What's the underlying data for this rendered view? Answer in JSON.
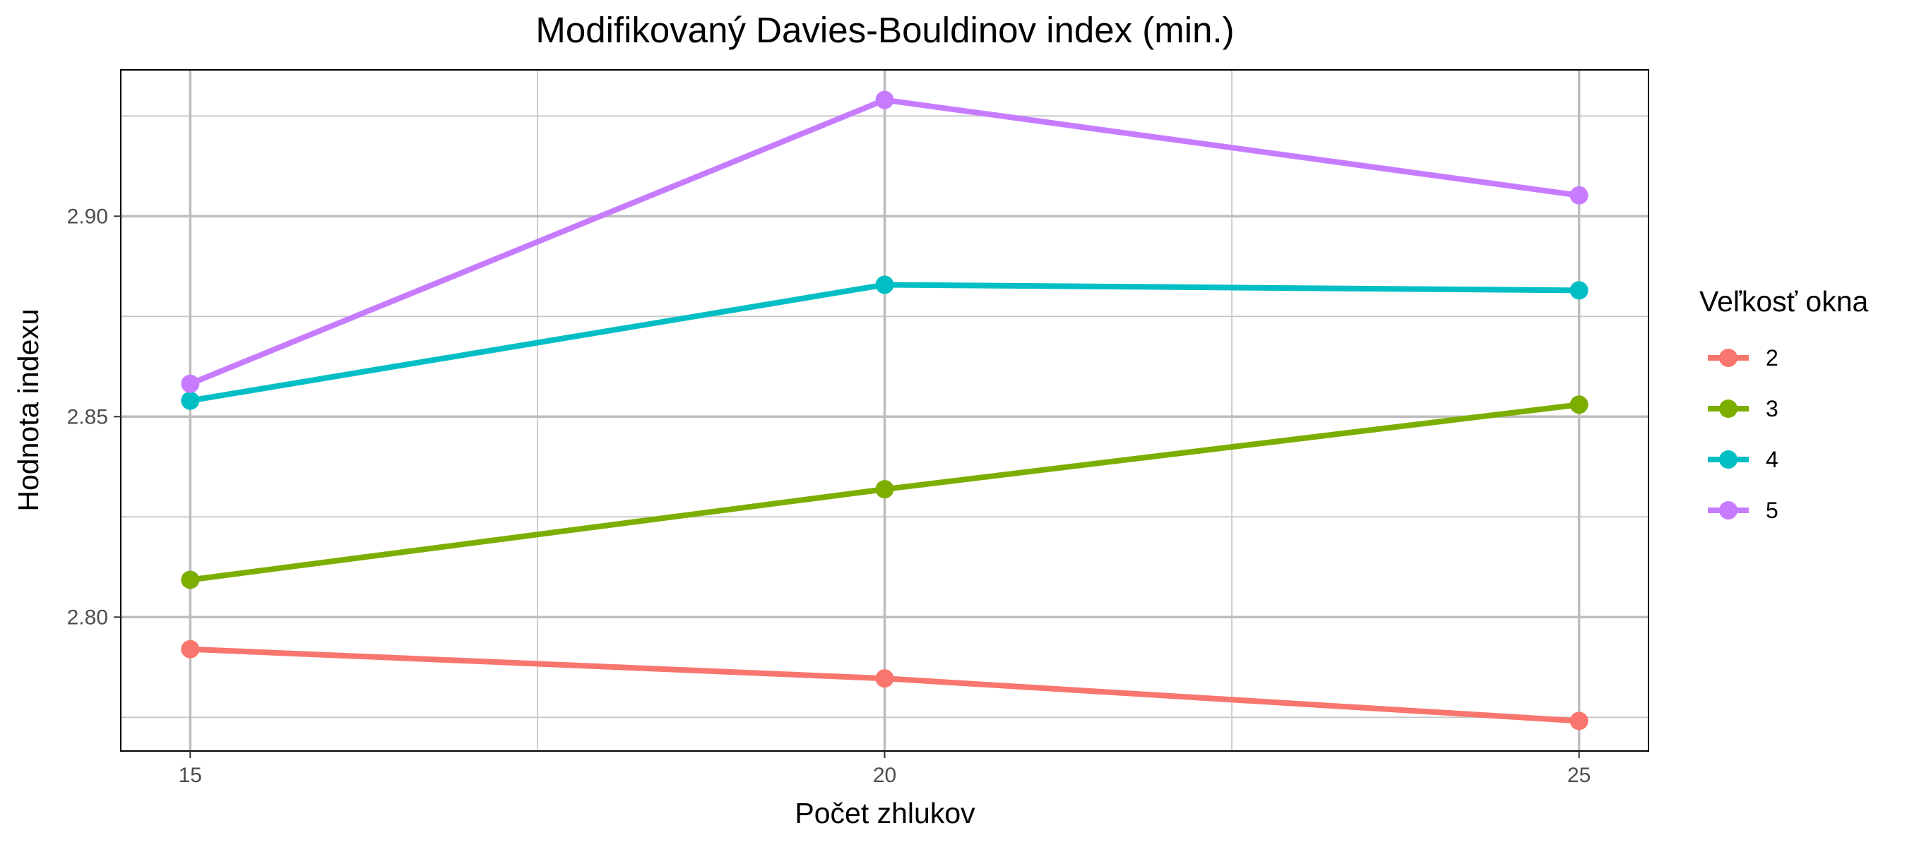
{
  "chart_data": {
    "type": "line",
    "title": "Modifikovaný Davies-Bouldinov index (min.)",
    "xlabel": "Počet zhlukov",
    "ylabel": "Hodnota indexu",
    "x": [
      15,
      20,
      25
    ],
    "xlim": [
      14.5,
      25.5
    ],
    "ylim": [
      2.7666,
      2.9365
    ],
    "x_major_ticks": [
      15,
      20,
      25
    ],
    "x_minor_ticks": [
      17.5,
      22.5
    ],
    "y_major_ticks": [
      2.8,
      2.85,
      2.9
    ],
    "y_minor_ticks": [
      2.775,
      2.825,
      2.875,
      2.925
    ],
    "x_tick_labels": [
      "15",
      "20",
      "25"
    ],
    "y_tick_labels": [
      "2.80",
      "2.85",
      "2.90"
    ],
    "grid": true,
    "legend": {
      "title": "Veľkosť okna",
      "placement": "right"
    },
    "series": [
      {
        "name": "2",
        "color": "#F8766D",
        "values": [
          2.792,
          2.7847,
          2.7741
        ]
      },
      {
        "name": "3",
        "color": "#7CAE00",
        "values": [
          2.8093,
          2.8319,
          2.853
        ]
      },
      {
        "name": "4",
        "color": "#00BFC4",
        "values": [
          2.854,
          2.8829,
          2.8815
        ]
      },
      {
        "name": "5",
        "color": "#C77CFF",
        "values": [
          2.8582,
          2.929,
          2.9052
        ]
      }
    ]
  }
}
